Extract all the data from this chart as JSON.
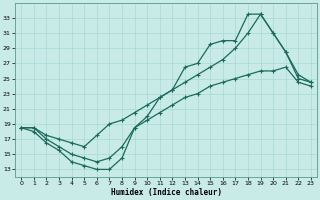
{
  "bg_color": "#c8ebe8",
  "line_color": "#1a6b5a",
  "xlabel": "Humidex (Indice chaleur)",
  "xlim": [
    -0.5,
    23.5
  ],
  "ylim": [
    12,
    35
  ],
  "yticks": [
    13,
    15,
    17,
    19,
    21,
    23,
    25,
    27,
    29,
    31,
    33
  ],
  "xticks": [
    0,
    1,
    2,
    3,
    4,
    5,
    6,
    7,
    8,
    9,
    10,
    11,
    12,
    13,
    14,
    15,
    16,
    17,
    18,
    19,
    20,
    21,
    22,
    23
  ],
  "grid_color": "#a8d8d5",
  "zigzag_x": [
    0,
    1,
    2,
    3,
    4,
    5,
    6,
    7,
    8,
    9,
    10,
    11,
    12,
    13,
    14,
    15,
    16,
    17,
    18,
    19,
    20,
    21,
    22,
    23
  ],
  "zigzag_y": [
    18.5,
    18.0,
    16.5,
    15.5,
    14.0,
    13.5,
    13.0,
    13.0,
    14.5,
    18.5,
    20.0,
    22.5,
    23.5,
    26.5,
    27.0,
    29.5,
    30.0,
    30.0,
    33.5,
    33.5,
    31.0,
    28.5,
    25.0,
    24.5
  ],
  "line_low_x": [
    0,
    1,
    2,
    3,
    4,
    5,
    6,
    7,
    8,
    9,
    10,
    11,
    12,
    13,
    14,
    15,
    16,
    17,
    18,
    19,
    20,
    21,
    22,
    23
  ],
  "line_low_y": [
    18.5,
    18.5,
    17.0,
    16.0,
    15.0,
    14.5,
    14.0,
    14.5,
    16.0,
    18.5,
    19.5,
    20.5,
    21.5,
    22.5,
    23.0,
    24.0,
    24.5,
    25.0,
    25.5,
    26.0,
    26.0,
    26.5,
    24.5,
    24.0
  ],
  "line_high_x": [
    0,
    1,
    2,
    3,
    4,
    5,
    6,
    7,
    8,
    9,
    10,
    11,
    12,
    13,
    14,
    15,
    16,
    17,
    18,
    19,
    20,
    21,
    22,
    23
  ],
  "line_high_y": [
    18.5,
    18.5,
    17.5,
    17.0,
    16.5,
    16.0,
    17.5,
    19.0,
    19.5,
    20.5,
    21.5,
    22.5,
    23.5,
    24.5,
    25.5,
    26.5,
    27.5,
    29.0,
    31.0,
    33.5,
    31.0,
    28.5,
    25.5,
    24.5
  ]
}
